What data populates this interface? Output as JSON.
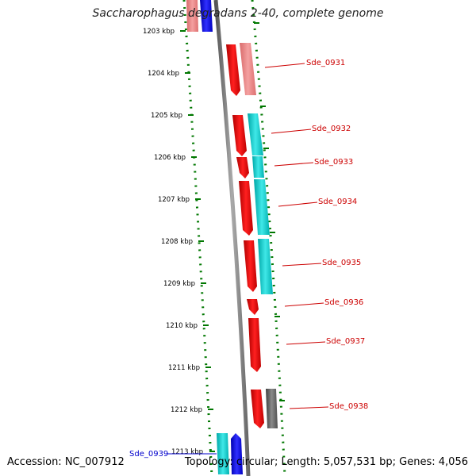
{
  "title": "Saccharophagus degradans 2-40, complete genome",
  "footer": {
    "accession": "Accession: NC_007912",
    "summary": "Topology: circular; Length: 5,057,531 bp; Genes: 4,056"
  },
  "colors": {
    "forward_gene": "#ff0000",
    "forward_gene_faded": "#f08080",
    "reverse_gene": "#00cccc",
    "neighbor_gene": "#0000ff",
    "hypothetical_gene": "#666666",
    "label_red": "#cc0000",
    "label_blue": "#0000cc",
    "tick_green": "#007700",
    "backbone": "#888888"
  },
  "ticks": [
    "1203 kbp",
    "1204 kbp",
    "1205 kbp",
    "1206 kbp",
    "1207 kbp",
    "1208 kbp",
    "1209 kbp",
    "1210 kbp",
    "1211 kbp",
    "1212 kbp",
    "1213 kbp"
  ],
  "genes": [
    {
      "label": "Sde_0931",
      "color": "red"
    },
    {
      "label": "Sde_0932",
      "color": "red"
    },
    {
      "label": "Sde_0933",
      "color": "red"
    },
    {
      "label": "Sde_0934",
      "color": "red"
    },
    {
      "label": "Sde_0935",
      "color": "red"
    },
    {
      "label": "Sde_0936",
      "color": "red"
    },
    {
      "label": "Sde_0937",
      "color": "red"
    },
    {
      "label": "Sde_0938",
      "color": "red"
    },
    {
      "label": "Sde_0939",
      "color": "blue"
    }
  ]
}
